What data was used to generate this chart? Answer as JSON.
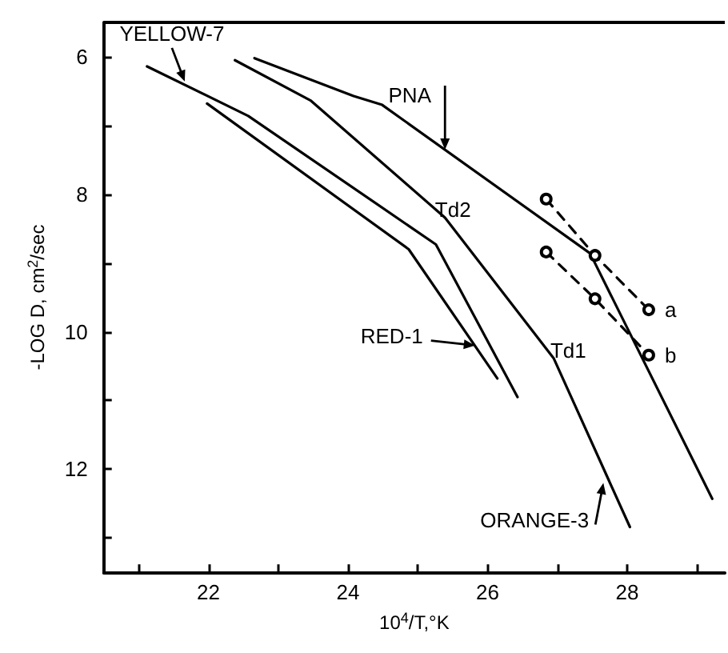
{
  "chart_data": {
    "type": "line",
    "xlabel": "10$^{4}$/T,°K",
    "ylabel": "-LOG D, cm$^{2}$/sec",
    "xlim": [
      20.5,
      29.4
    ],
    "ylim": [
      13.5,
      5.5
    ],
    "xticks": [
      {
        "value": 21,
        "label": null
      },
      22,
      {
        "value": 23,
        "label": null
      },
      24,
      {
        "value": 25,
        "label": null
      },
      26,
      {
        "value": 27,
        "label": null
      },
      28,
      {
        "value": 29,
        "label": null
      }
    ],
    "yticks": [
      6,
      {
        "value": 7,
        "label": null
      },
      8,
      {
        "value": 9,
        "label": null
      },
      10,
      {
        "value": 11,
        "label": null
      },
      12,
      {
        "value": 13,
        "label": null
      }
    ],
    "grid": false,
    "legend": false,
    "marker": "none",
    "line_style": "solid",
    "series": [
      {
        "color": "#000000",
        "x": [
          22.66,
          24.08,
          24.49,
          27.47,
          29.22
        ],
        "values": [
          6.02,
          6.57,
          6.7,
          8.86,
          12.43
        ]
      },
      {
        "color": "#000000",
        "x": [
          22.38,
          23.47,
          25.39,
          26.95,
          28.04
        ],
        "values": [
          6.05,
          6.64,
          8.34,
          10.39,
          12.84
        ]
      },
      {
        "color": "#000000",
        "x": [
          21.12,
          22.57,
          25.26,
          26.43
        ],
        "values": [
          6.14,
          6.86,
          8.73,
          10.95
        ]
      },
      {
        "color": "#000000",
        "x": [
          21.98,
          24.87,
          26.14
        ],
        "values": [
          6.68,
          8.8,
          10.68
        ]
      },
      {
        "name": "a",
        "color": "#000000",
        "marker": "circle",
        "line_style": "dashed",
        "x": [
          26.84,
          27.54,
          28.31
        ],
        "values": [
          8.07,
          8.89,
          9.68
        ]
      },
      {
        "name": "b",
        "color": "#000000",
        "marker": "circle",
        "line_style": "dashed",
        "x": [
          26.84,
          27.54,
          28.31
        ],
        "values": [
          8.84,
          9.52,
          10.34
        ]
      }
    ],
    "annotations": [
      {
        "text": "YELLOW-7",
        "x": 21.66,
        "y": 6.36
      },
      {
        "text": "PNA",
        "x": 25.39,
        "y": 7.35
      },
      {
        "text": "Td2",
        "x": 25.39,
        "y": 8.34
      },
      {
        "text": "RED-1",
        "x": 25.82,
        "y": 10.2
      },
      {
        "text": "Td1",
        "x": 26.95,
        "y": 10.39
      },
      {
        "text": "ORANGE-3",
        "x": 27.66,
        "y": 12.2
      }
    ]
  }
}
